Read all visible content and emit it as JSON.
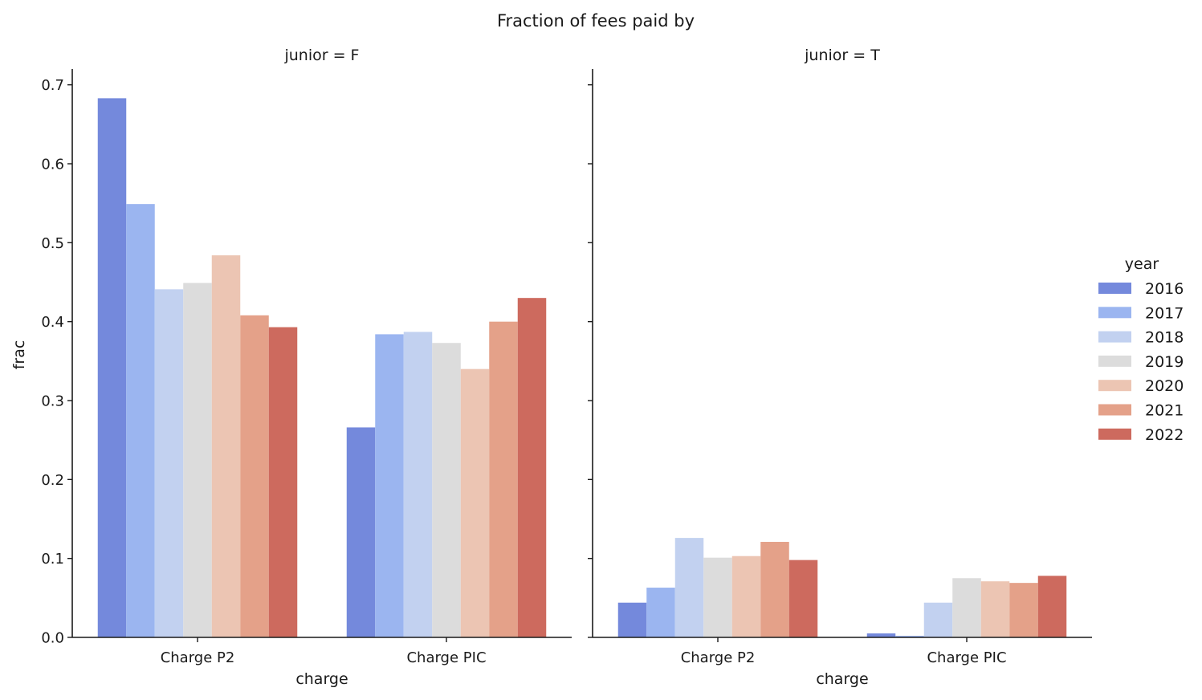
{
  "chart_data": {
    "type": "bar",
    "title": "Fraction of fees paid by",
    "xlabel": "charge",
    "ylabel": "frac",
    "ylim": [
      0,
      0.72
    ],
    "yticks": [
      "0.0",
      "0.1",
      "0.2",
      "0.3",
      "0.4",
      "0.5",
      "0.6",
      "0.7"
    ],
    "categories": [
      "Charge P2",
      "Charge PIC"
    ],
    "legend": {
      "title": "year",
      "placement": "right"
    },
    "grid": false,
    "series": [
      {
        "name": "2016",
        "color": "#7489dc"
      },
      {
        "name": "2017",
        "color": "#9bb5f0"
      },
      {
        "name": "2018",
        "color": "#c2d1f0"
      },
      {
        "name": "2019",
        "color": "#dcdcdc"
      },
      {
        "name": "2020",
        "color": "#ecc5b3"
      },
      {
        "name": "2021",
        "color": "#e4a189"
      },
      {
        "name": "2022",
        "color": "#cd6a5e"
      }
    ],
    "facets": [
      {
        "title": "junior = F",
        "values": [
          [
            0.683,
            0.549,
            0.441,
            0.449,
            0.484,
            0.408,
            0.393
          ],
          [
            0.266,
            0.384,
            0.387,
            0.373,
            0.34,
            0.4,
            0.43
          ]
        ]
      },
      {
        "title": "junior = T",
        "values": [
          [
            0.044,
            0.063,
            0.126,
            0.101,
            0.103,
            0.121,
            0.098
          ],
          [
            0.005,
            0.002,
            0.044,
            0.075,
            0.071,
            0.069,
            0.078
          ]
        ]
      }
    ]
  }
}
